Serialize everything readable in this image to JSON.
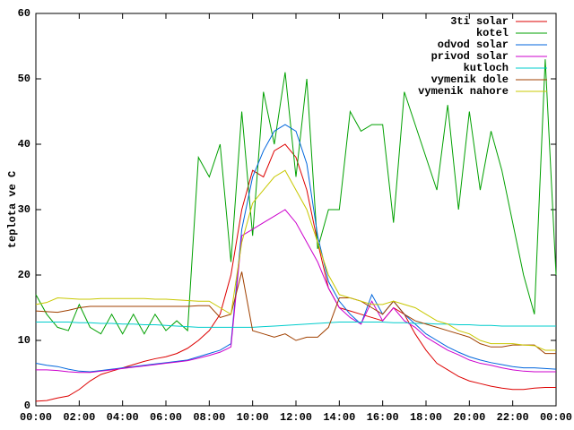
{
  "chart_data": {
    "type": "line",
    "ylabel": "teplota ve C",
    "x": [
      0,
      0.5,
      1,
      1.5,
      2,
      2.5,
      3,
      3.5,
      4,
      4.5,
      5,
      5.5,
      6,
      6.5,
      7,
      7.5,
      8,
      8.5,
      9,
      9.5,
      10,
      10.5,
      11,
      11.5,
      12,
      12.5,
      13,
      13.5,
      14,
      14.5,
      15,
      15.5,
      16,
      16.5,
      17,
      17.5,
      18,
      18.5,
      19,
      19.5,
      20,
      20.5,
      21,
      21.5,
      22,
      22.5,
      23,
      23.5,
      24
    ],
    "series": [
      {
        "name": "3ti solar",
        "color": "#dd0000",
        "values": [
          0.7,
          0.8,
          1.2,
          1.5,
          2.5,
          3.8,
          4.8,
          5.3,
          5.8,
          6.3,
          6.8,
          7.2,
          7.5,
          8,
          8.8,
          10,
          11.5,
          14,
          20,
          30,
          36,
          35,
          39,
          40,
          38,
          33,
          25,
          18,
          15,
          14.5,
          14,
          13.5,
          13,
          15,
          14,
          11,
          8.5,
          6.5,
          5.5,
          4.5,
          3.8,
          3.4,
          3,
          2.7,
          2.5,
          2.5,
          2.7,
          2.8,
          2.8
        ]
      },
      {
        "name": "kotel",
        "color": "#00a000",
        "values": [
          17,
          14,
          12,
          11.5,
          15.5,
          12,
          11,
          14,
          11,
          14,
          11,
          14,
          11.5,
          13,
          11.5,
          38,
          35,
          40,
          22,
          45,
          26,
          48,
          40,
          51,
          35,
          50,
          24,
          30,
          30,
          45,
          42,
          43,
          43,
          28,
          48,
          43,
          38,
          33,
          46,
          30,
          45,
          33,
          42,
          36,
          28,
          20,
          14,
          53,
          20
        ]
      },
      {
        "name": "odvod solar",
        "color": "#0066dd",
        "values": [
          6.5,
          6.2,
          6,
          5.6,
          5.3,
          5.2,
          5.4,
          5.6,
          5.8,
          6,
          6.2,
          6.4,
          6.6,
          6.8,
          7,
          7.5,
          8,
          8.5,
          9.5,
          27,
          35,
          39,
          42,
          43,
          42,
          37,
          26,
          19,
          16,
          14,
          12.5,
          17,
          14,
          16,
          14,
          12.5,
          11,
          10,
          9,
          8.2,
          7.5,
          7,
          6.6,
          6.3,
          6,
          5.8,
          5.8,
          5.7,
          5.6
        ]
      },
      {
        "name": "privod solar",
        "color": "#cc00cc",
        "values": [
          5.5,
          5.5,
          5.4,
          5.2,
          5.1,
          5.1,
          5.3,
          5.5,
          5.7,
          5.9,
          6.1,
          6.3,
          6.5,
          6.7,
          6.9,
          7.3,
          7.7,
          8.2,
          9,
          26,
          27,
          28,
          29,
          30,
          28,
          25,
          22,
          18,
          15,
          13.5,
          12.5,
          16,
          13,
          15,
          13,
          12,
          10.5,
          9.5,
          8.5,
          7.8,
          7,
          6.5,
          6.2,
          5.8,
          5.5,
          5.3,
          5.2,
          5.2,
          5.2
        ]
      },
      {
        "name": "kutloch",
        "color": "#00cccc",
        "values": [
          12.8,
          12.8,
          12.8,
          12.8,
          12.7,
          12.7,
          12.6,
          12.6,
          12.5,
          12.5,
          12.4,
          12.4,
          12.3,
          12.2,
          12.1,
          12,
          12,
          12,
          12,
          12,
          12,
          12.1,
          12.2,
          12.3,
          12.4,
          12.5,
          12.6,
          12.7,
          12.8,
          12.8,
          12.8,
          12.8,
          12.8,
          12.7,
          12.7,
          12.6,
          12.6,
          12.5,
          12.5,
          12.4,
          12.4,
          12.3,
          12.3,
          12.2,
          12.2,
          12.2,
          12.2,
          12.2,
          12.2
        ]
      },
      {
        "name": "vymenik dole",
        "color": "#a04000",
        "values": [
          14.5,
          14.4,
          14.3,
          14.6,
          15,
          15.2,
          15.2,
          15.2,
          15.2,
          15.2,
          15.2,
          15.2,
          15.2,
          15.2,
          15.2,
          15.3,
          15.3,
          13.5,
          14,
          20.5,
          11.5,
          11,
          10.5,
          11,
          10,
          10.5,
          10.5,
          12,
          16.5,
          16.5,
          16,
          15,
          14,
          16,
          14,
          13,
          12.5,
          12,
          11.5,
          11,
          10.5,
          9.5,
          9,
          9,
          9.3,
          9.3,
          9.3,
          8,
          8
        ]
      },
      {
        "name": "vymenik nahore",
        "color": "#c8c800",
        "values": [
          15.5,
          15.8,
          16.5,
          16.4,
          16.3,
          16.3,
          16.4,
          16.4,
          16.4,
          16.4,
          16.4,
          16.3,
          16.3,
          16.2,
          16.1,
          16,
          16,
          15,
          14,
          25,
          31,
          33,
          35,
          36,
          33,
          30,
          25,
          20,
          17,
          16.5,
          16,
          15.5,
          15.5,
          16,
          15.5,
          15,
          14,
          13,
          12.5,
          11.5,
          11,
          10,
          9.5,
          9.5,
          9.5,
          9.3,
          9.2,
          8.5,
          8.5
        ]
      }
    ],
    "xlim": [
      0,
      24
    ],
    "xticks": [
      {
        "value": 0,
        "label": "00:00"
      },
      {
        "value": 2,
        "label": "02:00"
      },
      {
        "value": 4,
        "label": "04:00"
      },
      {
        "value": 6,
        "label": "06:00"
      },
      {
        "value": 8,
        "label": "08:00"
      },
      {
        "value": 10,
        "label": "10:00"
      },
      {
        "value": 12,
        "label": "12:00"
      },
      {
        "value": 14,
        "label": "14:00"
      },
      {
        "value": 16,
        "label": "16:00"
      },
      {
        "value": 18,
        "label": "18:00"
      },
      {
        "value": 20,
        "label": "20:00"
      },
      {
        "value": 22,
        "label": "22:00"
      },
      {
        "value": 24,
        "label": "00:00"
      }
    ],
    "ylim": [
      0,
      60
    ],
    "yticks": [
      0,
      10,
      20,
      30,
      40,
      50,
      60
    ],
    "legend": "upper right"
  }
}
